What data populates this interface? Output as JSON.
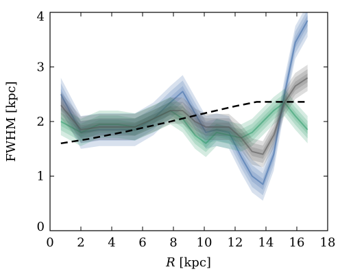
{
  "chart_data": {
    "type": "line",
    "title": "",
    "xlabel_prefix": "R",
    "xlabel_suffix": " [kpc]",
    "ylabel": "FWHM [kpc]",
    "xlim": [
      0,
      18
    ],
    "ylim": [
      0,
      4
    ],
    "xticks": [
      0,
      2,
      4,
      6,
      8,
      10,
      12,
      14,
      16,
      18
    ],
    "yticks": [
      0,
      1,
      2,
      3,
      4
    ],
    "xtick_labels": [
      "0",
      "2",
      "4",
      "6",
      "8",
      "10",
      "12",
      "14",
      "16",
      "18"
    ],
    "ytick_labels": [
      "0",
      "1",
      "2",
      "3",
      "4"
    ],
    "grid": false,
    "series": [
      {
        "style": "band",
        "color": "#3a6aa8",
        "x": [
          0.7,
          2.0,
          3.2,
          4.4,
          5.5,
          6.7,
          7.8,
          8.6,
          9.4,
          10.1,
          10.8,
          11.6,
          12.4,
          13.1,
          13.8,
          14.5,
          15.2,
          15.9,
          16.7
        ],
        "values": [
          2.5,
          1.8,
          1.85,
          1.85,
          1.85,
          2.05,
          2.35,
          2.55,
          2.15,
          1.8,
          1.85,
          1.8,
          1.35,
          1.0,
          0.85,
          1.4,
          2.5,
          3.45,
          3.85
        ],
        "spreads": [
          0.1,
          0.2,
          0.3
        ]
      },
      {
        "style": "band",
        "color": "#2e9a69",
        "x": [
          0.7,
          2.0,
          3.2,
          4.4,
          5.5,
          6.7,
          7.8,
          8.6,
          9.4,
          10.1,
          10.8,
          11.6,
          12.4,
          13.1,
          13.8,
          14.5,
          15.2,
          15.9,
          16.7
        ],
        "values": [
          2.0,
          1.8,
          1.95,
          1.95,
          1.9,
          2.05,
          2.2,
          2.05,
          1.75,
          1.6,
          1.8,
          1.75,
          1.7,
          1.8,
          2.0,
          2.2,
          2.35,
          2.1,
          1.85
        ],
        "spreads": [
          0.08,
          0.16,
          0.25
        ]
      },
      {
        "style": "band",
        "color": "#555555",
        "x": [
          0.7,
          2.0,
          3.2,
          4.4,
          5.5,
          6.7,
          7.8,
          8.6,
          9.4,
          10.1,
          10.8,
          11.6,
          12.4,
          13.1,
          13.8,
          14.5,
          15.2,
          15.9,
          16.7
        ],
        "values": [
          2.3,
          1.85,
          1.9,
          1.9,
          1.9,
          2.05,
          2.2,
          2.2,
          2.0,
          1.9,
          1.9,
          1.9,
          1.7,
          1.45,
          1.4,
          1.75,
          2.35,
          2.65,
          2.8
        ],
        "spreads": [
          0.08,
          0.16,
          0.24
        ]
      },
      {
        "style": "dashed",
        "color": "#000000",
        "x": [
          0.7,
          2.5,
          5.0,
          7.5,
          10.0,
          12.0,
          13.4,
          16.7
        ],
        "values": [
          1.6,
          1.68,
          1.82,
          1.98,
          2.15,
          2.28,
          2.36,
          2.36
        ]
      }
    ]
  }
}
